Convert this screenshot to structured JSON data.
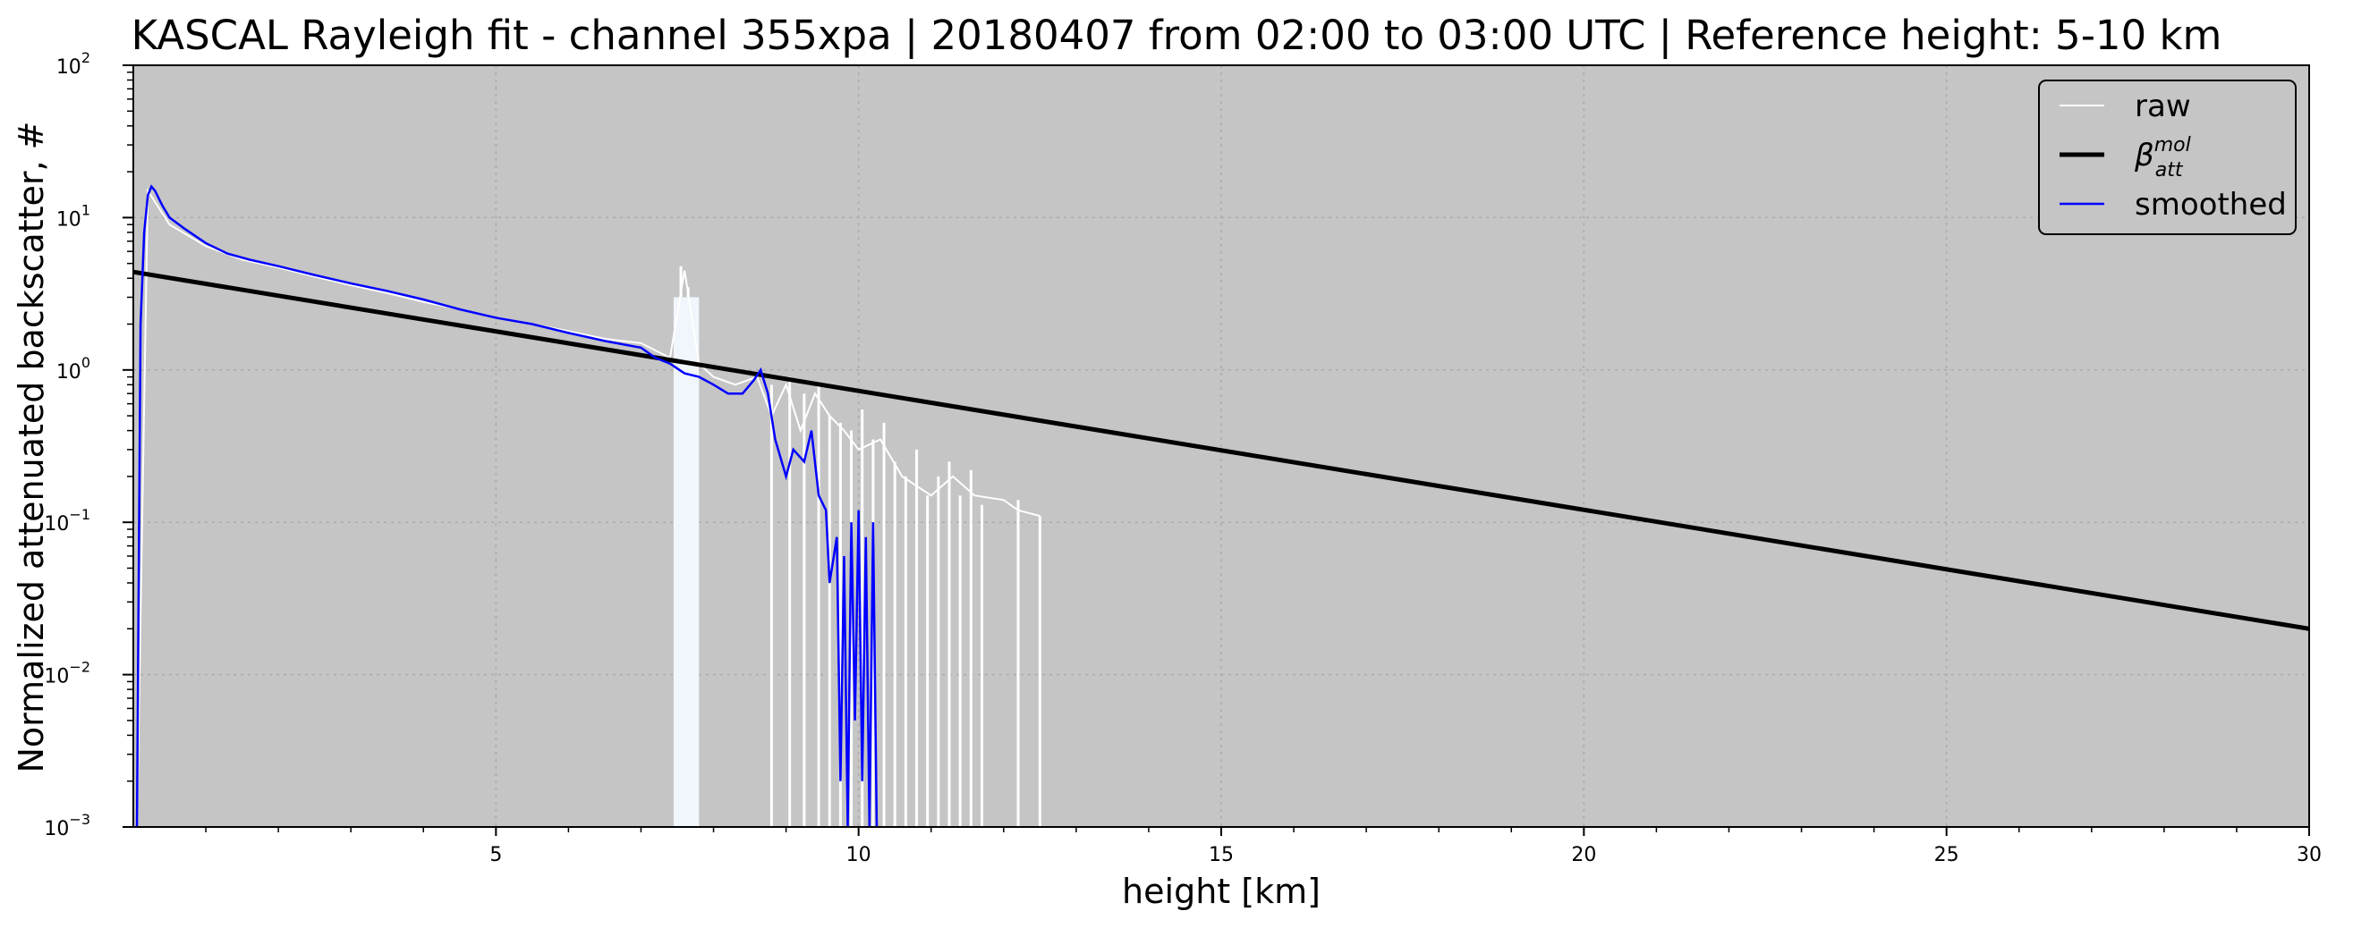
{
  "chart_data": {
    "type": "line",
    "title": "KASCAL Rayleigh fit - channel 355xpa | 20180407 from 02:00 to 03:00 UTC | Reference height: 5-10 km",
    "xlabel": "height [km]",
    "ylabel": "Normalized attenuated backscatter, #",
    "xlim": [
      0,
      30
    ],
    "ylim": [
      0.001,
      100
    ],
    "yscale": "log",
    "background_color": "#c5c5c5",
    "grid": true,
    "legend_position": "upper right",
    "x_ticks": [
      "5",
      "10",
      "15",
      "20",
      "25",
      "30"
    ],
    "x_tick_values": [
      5,
      10,
      15,
      20,
      25,
      30
    ],
    "y_ticks": [
      {
        "value": 0.001,
        "base": "10",
        "exp": "−3"
      },
      {
        "value": 0.01,
        "base": "10",
        "exp": "−2"
      },
      {
        "value": 0.1,
        "base": "10",
        "exp": "−1"
      },
      {
        "value": 1,
        "base": "10",
        "exp": "0"
      },
      {
        "value": 10,
        "base": "10",
        "exp": "1"
      },
      {
        "value": 100,
        "base": "10",
        "exp": "2"
      }
    ],
    "legend": [
      {
        "label": "raw",
        "color": "#ffffff",
        "width": 2
      },
      {
        "label": "β",
        "sup": "mol",
        "sub": "att",
        "color": "#000000",
        "width": 5
      },
      {
        "label": "smoothed",
        "color": "#0000ff",
        "width": 2.5
      }
    ],
    "series": [
      {
        "name": "raw",
        "color": "#ffffff",
        "x": [
          0.05,
          0.2,
          0.5,
          1.0,
          1.5,
          2.0,
          2.5,
          3.0,
          3.5,
          4.0,
          4.5,
          5.0,
          5.5,
          6.0,
          6.5,
          7.0,
          7.4,
          7.6,
          7.8,
          8.0,
          8.3,
          8.6,
          8.8,
          9.0,
          9.2,
          9.4,
          9.6,
          9.8,
          10.0,
          10.3,
          10.6,
          11.0,
          11.3,
          11.6,
          12.0,
          12.2,
          12.5
        ],
        "y": [
          0.001,
          15,
          9,
          6.5,
          5.3,
          4.7,
          4.1,
          3.6,
          3.2,
          2.8,
          2.5,
          2.2,
          2.0,
          1.8,
          1.6,
          1.5,
          1.2,
          4.5,
          1.1,
          0.9,
          0.8,
          0.9,
          0.5,
          0.8,
          0.4,
          0.7,
          0.5,
          0.4,
          0.3,
          0.35,
          0.2,
          0.15,
          0.2,
          0.15,
          0.14,
          0.12,
          0.11
        ],
        "spikes": [
          {
            "x": 7.55,
            "top": 4.8
          },
          {
            "x": 7.65,
            "top": 3.5
          },
          {
            "x": 7.75,
            "top": 2.6
          },
          {
            "x": 8.8,
            "top": 0.8
          },
          {
            "x": 9.05,
            "top": 0.9
          },
          {
            "x": 9.25,
            "top": 0.7
          },
          {
            "x": 9.45,
            "top": 0.8
          },
          {
            "x": 9.6,
            "top": 0.5
          },
          {
            "x": 9.75,
            "top": 0.45
          },
          {
            "x": 9.9,
            "top": 0.4
          },
          {
            "x": 10.05,
            "top": 0.55
          },
          {
            "x": 10.2,
            "top": 0.35
          },
          {
            "x": 10.35,
            "top": 0.45
          },
          {
            "x": 10.5,
            "top": 0.25
          },
          {
            "x": 10.65,
            "top": 0.2
          },
          {
            "x": 10.8,
            "top": 0.3
          },
          {
            "x": 10.95,
            "top": 0.15
          },
          {
            "x": 11.1,
            "top": 0.2
          },
          {
            "x": 11.25,
            "top": 0.25
          },
          {
            "x": 11.4,
            "top": 0.15
          },
          {
            "x": 11.55,
            "top": 0.22
          },
          {
            "x": 11.7,
            "top": 0.13
          },
          {
            "x": 12.2,
            "top": 0.14
          },
          {
            "x": 12.5,
            "top": 0.11
          }
        ]
      },
      {
        "name": "β_att^mol",
        "color": "#000000",
        "x": [
          0,
          30
        ],
        "y": [
          4.4,
          0.02
        ]
      },
      {
        "name": "smoothed",
        "color": "#0000ff",
        "x": [
          0.05,
          0.1,
          0.15,
          0.2,
          0.25,
          0.3,
          0.4,
          0.5,
          0.7,
          1.0,
          1.3,
          1.6,
          2.0,
          2.5,
          3.0,
          3.5,
          4.0,
          4.5,
          5.0,
          5.5,
          6.0,
          6.5,
          7.0,
          7.2,
          7.4,
          7.6,
          7.8,
          8.0,
          8.2,
          8.4,
          8.55,
          8.65,
          8.75,
          8.85,
          9.0,
          9.1,
          9.25,
          9.35,
          9.45,
          9.55,
          9.6,
          9.7,
          9.75,
          9.8,
          9.85,
          9.9,
          9.95,
          10.0,
          10.05,
          10.1,
          10.15,
          10.2,
          10.25
        ],
        "y": [
          0.001,
          2.0,
          8.0,
          14.0,
          16.0,
          15.0,
          12.0,
          10.0,
          8.5,
          6.8,
          5.8,
          5.3,
          4.8,
          4.2,
          3.7,
          3.3,
          2.9,
          2.5,
          2.2,
          2.0,
          1.75,
          1.55,
          1.4,
          1.2,
          1.1,
          0.95,
          0.9,
          0.8,
          0.7,
          0.7,
          0.85,
          1.0,
          0.7,
          0.35,
          0.2,
          0.3,
          0.25,
          0.4,
          0.15,
          0.12,
          0.04,
          0.08,
          0.002,
          0.06,
          0.001,
          0.1,
          0.005,
          0.12,
          0.002,
          0.08,
          0.001,
          0.1,
          0.001
        ]
      }
    ]
  }
}
